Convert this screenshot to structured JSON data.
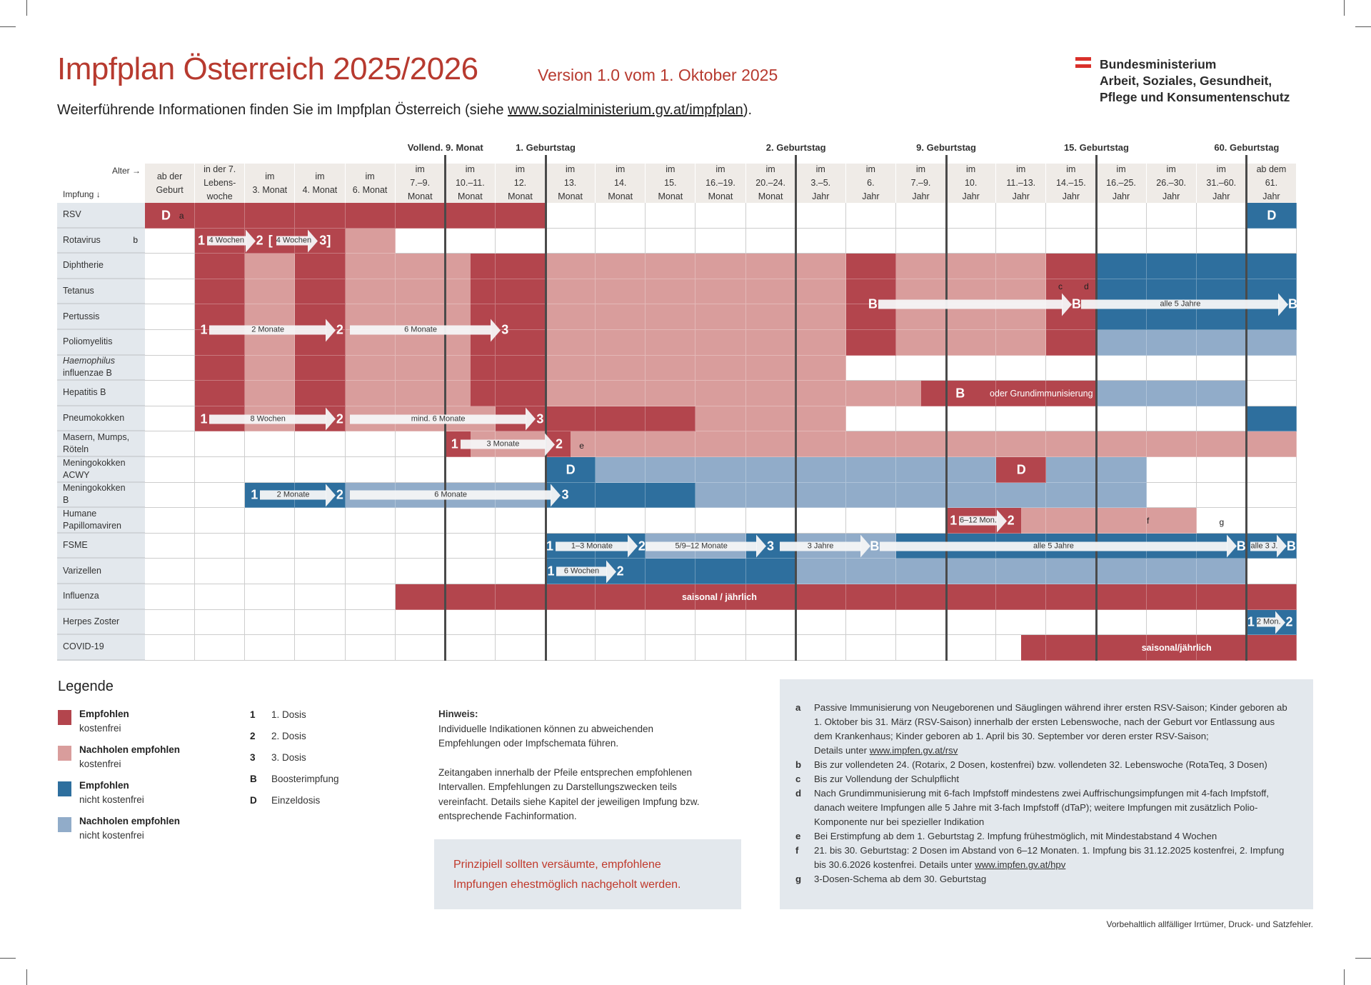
{
  "header": {
    "title": "Impfplan Österreich 2025/2026",
    "version": "Version 1.0 vom 1. Oktober 2025",
    "subtitle_prefix": "Weiterführende Informationen finden Sie im Impfplan Österreich (siehe ",
    "subtitle_link": "www.sozialministerium.gv.at/impfplan",
    "subtitle_suffix": ").",
    "ministry_lines": [
      "Bundesministerium",
      "Arbeit, Soziales, Gesundheit,",
      "Pflege und Konsumentenschutz"
    ],
    "brand_color": "#b73a2f"
  },
  "colors": {
    "R": "#b3454d",
    "r": "#d99d9c",
    "B": "#2e6f9e",
    "b": "#91acc9"
  },
  "table": {
    "age_label": "Alter →",
    "vaccine_label": "Impfung ↓",
    "milestones": [
      {
        "label": "Vollend. 9. Monat",
        "after_column": 5
      },
      {
        "label": "1. Geburtstag",
        "after_column": 7
      },
      {
        "label": "2. Geburtstag",
        "after_column": 12
      },
      {
        "label": "9. Geburtstag",
        "after_column": 15
      },
      {
        "label": "15. Geburtstag",
        "after_column": 18
      },
      {
        "label": "60. Geburtstag",
        "after_column": 21
      }
    ],
    "columns": [
      [
        "ab der",
        "Geburt"
      ],
      [
        "in der 7.",
        "Lebens-",
        "woche"
      ],
      [
        "im",
        "3. Monat"
      ],
      [
        "im",
        "4. Monat"
      ],
      [
        "im",
        "6. Monat"
      ],
      [
        "im",
        "7.–9.",
        "Monat"
      ],
      [
        "im",
        "10.–11.",
        "Monat"
      ],
      [
        "im",
        "12.",
        "Monat"
      ],
      [
        "im",
        "13.",
        "Monat"
      ],
      [
        "im",
        "14.",
        "Monat"
      ],
      [
        "im",
        "15.",
        "Monat"
      ],
      [
        "im",
        "16.–19.",
        "Monat"
      ],
      [
        "im",
        "20.–24.",
        "Monat"
      ],
      [
        "im",
        "3.–5.",
        "Jahr"
      ],
      [
        "im",
        "6.",
        "Jahr"
      ],
      [
        "im",
        "7.–9.",
        "Jahr"
      ],
      [
        "im",
        "10.",
        "Jahr"
      ],
      [
        "im",
        "11.–13.",
        "Jahr"
      ],
      [
        "im",
        "14.–15.",
        "Jahr"
      ],
      [
        "im",
        "16.–25.",
        "Jahr"
      ],
      [
        "im",
        "26.–30.",
        "Jahr"
      ],
      [
        "im",
        "31.–60.",
        "Jahr"
      ],
      [
        "ab dem",
        "61.",
        "Jahr"
      ]
    ],
    "rows": [
      {
        "name": "RSV",
        "note": "",
        "cells": [
          "R",
          "R",
          "R",
          "R",
          "R",
          "R",
          "R",
          "R",
          "",
          "",
          "",
          "",
          "",
          "",
          "",
          "",
          "",
          "",
          "",
          "",
          "",
          "",
          "B"
        ]
      },
      {
        "name": "Rotavirus",
        "note": "b",
        "cells": [
          "",
          "R",
          "R",
          "R",
          "r",
          "",
          "",
          "",
          "",
          "",
          "",
          "",
          "",
          "",
          "",
          "",
          "",
          "",
          "",
          "",
          "",
          "",
          ""
        ]
      },
      {
        "name": "Diphtherie",
        "note": "",
        "cells": [
          "",
          "R",
          "r",
          "R",
          "r",
          "r",
          "r|R",
          "R",
          "r",
          "r",
          "r",
          "r",
          "r",
          "r",
          "R",
          "r",
          "r",
          "r",
          "R",
          "B",
          "B",
          "B",
          "B"
        ]
      },
      {
        "name": "Tetanus",
        "note": "",
        "cells": [
          "",
          "R",
          "r",
          "R",
          "r",
          "r",
          "r|R",
          "R",
          "r",
          "r",
          "r",
          "r",
          "r",
          "r",
          "R",
          "r",
          "r",
          "r",
          "R",
          "B",
          "B",
          "B",
          "B"
        ]
      },
      {
        "name": "Pertussis",
        "note": "",
        "cells": [
          "",
          "R",
          "r",
          "R",
          "r",
          "r",
          "r|R",
          "R",
          "r",
          "r",
          "r",
          "r",
          "r",
          "r",
          "R",
          "r",
          "r",
          "r",
          "R",
          "B",
          "B",
          "B",
          "B"
        ]
      },
      {
        "name": "Poliomyelitis",
        "note": "",
        "cells": [
          "",
          "R",
          "r",
          "R",
          "r",
          "r",
          "r|R",
          "R",
          "r",
          "r",
          "r",
          "r",
          "r",
          "r",
          "R",
          "r",
          "r",
          "r",
          "R",
          "b",
          "b",
          "b",
          "b"
        ]
      },
      {
        "name": "Haemophilus influenzae B",
        "italic_part": "Haemophilus",
        "rest_part": "influenzae B",
        "note": "",
        "cells": [
          "",
          "R",
          "r",
          "R",
          "r",
          "r",
          "r|R",
          "R",
          "r",
          "r",
          "r",
          "r",
          "r",
          "r",
          "",
          "",
          "",
          "",
          "",
          "",
          "",
          "",
          ""
        ]
      },
      {
        "name": "Hepatitis B",
        "note": "",
        "cells": [
          "",
          "R",
          "r",
          "R",
          "r",
          "r",
          "r|R",
          "R",
          "r",
          "r",
          "r",
          "r",
          "r",
          "r",
          "r",
          "r|R",
          "R",
          "R",
          "R",
          "b",
          "b",
          "b",
          ""
        ]
      },
      {
        "name": "Pneumokokken",
        "note": "",
        "cells": [
          "",
          "R",
          "r",
          "R",
          "r",
          "r",
          "r",
          "R",
          "R",
          "R",
          "R",
          "r",
          "r",
          "r",
          "",
          "",
          "",
          "",
          "",
          "",
          "",
          "",
          "B"
        ]
      },
      {
        "name": "Masern, Mumps, Röteln",
        "note": "",
        "cells": [
          "",
          "",
          "",
          "",
          "",
          "",
          "R|r",
          "r",
          "R|r",
          "r",
          "r",
          "r",
          "r",
          "r",
          "r",
          "r",
          "r",
          "r",
          "r",
          "r",
          "r",
          "r",
          "r"
        ]
      },
      {
        "name": "Meningokokken ACWY",
        "note": "",
        "cells": [
          "",
          "",
          "",
          "",
          "",
          "",
          "",
          "",
          "B",
          "b",
          "b",
          "b",
          "b",
          "b",
          "b",
          "b",
          "b",
          "R",
          "b",
          "b",
          "",
          "",
          ""
        ]
      },
      {
        "name": "Meningokokken B",
        "note": "",
        "cells": [
          "",
          "",
          "B",
          "B",
          "b",
          "b",
          "b",
          "b",
          "B",
          "B",
          "B",
          "b",
          "b",
          "b",
          "b",
          "b",
          "b",
          "b",
          "b",
          "b",
          "",
          "",
          ""
        ]
      },
      {
        "name": "Humane Papillomaviren",
        "note": "",
        "cells": [
          "",
          "",
          "",
          "",
          "",
          "",
          "",
          "",
          "",
          "",
          "",
          "",
          "",
          "",
          "",
          "",
          "R",
          "R|r",
          "r",
          "r",
          "r",
          "",
          ""
        ]
      },
      {
        "name": "FSME",
        "note": "",
        "cells": [
          "",
          "",
          "",
          "",
          "",
          "",
          "",
          "",
          "B",
          "B",
          "b",
          "b",
          "B",
          "b",
          "b",
          "B",
          "B",
          "B",
          "B",
          "B",
          "B",
          "B",
          "B"
        ]
      },
      {
        "name": "Varizellen",
        "note": "",
        "cells": [
          "",
          "",
          "",
          "",
          "",
          "",
          "",
          "",
          "B",
          "B",
          "B",
          "B",
          "B",
          "b",
          "b",
          "b",
          "b",
          "b",
          "b",
          "b",
          "b",
          "b",
          ""
        ]
      },
      {
        "name": "Influenza",
        "note": "",
        "cells": [
          "",
          "",
          "",
          "",
          "",
          "R",
          "R",
          "R",
          "R",
          "R",
          "R",
          "R",
          "R",
          "R",
          "R",
          "R",
          "R",
          "R",
          "R",
          "R",
          "R",
          "R",
          "R"
        ]
      },
      {
        "name": "Herpes Zoster",
        "note": "",
        "cells": [
          "",
          "",
          "",
          "",
          "",
          "",
          "",
          "",
          "",
          "",
          "",
          "",
          "",
          "",
          "",
          "",
          "",
          "",
          "",
          "",
          "",
          "",
          "B"
        ]
      },
      {
        "name": "COVID-19",
        "note": "",
        "cells": [
          "",
          "",
          "",
          "",
          "",
          "",
          "",
          "",
          "",
          "",
          "",
          "",
          "",
          "",
          "",
          "",
          "",
          "|R",
          "R",
          "R",
          "R",
          "R",
          "R"
        ]
      }
    ],
    "cell_marks": [
      {
        "id": "rsv_d1",
        "text": "D"
      },
      {
        "id": "rsv_a",
        "text": "a"
      },
      {
        "id": "rsv_d2",
        "text": "D"
      },
      {
        "id": "acwy_d1",
        "text": "D"
      },
      {
        "id": "acwy_d2",
        "text": "D"
      },
      {
        "id": "dtp_c",
        "text": "c"
      },
      {
        "id": "dtp_d",
        "text": "d"
      },
      {
        "id": "mmr_e",
        "text": "e"
      },
      {
        "id": "hpv_f",
        "text": "f"
      },
      {
        "id": "hpv_g",
        "text": "g"
      },
      {
        "id": "hepb_b",
        "text": "B"
      },
      {
        "id": "hepb_text",
        "text": "oder Grundimmunisierung"
      },
      {
        "id": "flu_text",
        "text": "saisonal / jährlich"
      },
      {
        "id": "covid_text",
        "text": "saisonal/jährlich"
      }
    ],
    "arrows": [
      {
        "id": "rota1",
        "start": "1",
        "label": "4 Wochen",
        "end": "2"
      },
      {
        "id": "rota2",
        "start": "[",
        "label": "4 Wochen",
        "end": "3]"
      },
      {
        "id": "six1",
        "start": "1",
        "label": "2 Monate",
        "end": "2"
      },
      {
        "id": "six2",
        "start": "",
        "label": "6 Monate",
        "end": "3"
      },
      {
        "id": "dtp1",
        "start": "B",
        "label": "",
        "end": "B"
      },
      {
        "id": "dtp2",
        "start": "",
        "label": "alle 5 Jahre",
        "end": "B"
      },
      {
        "id": "pn1",
        "start": "1",
        "label": "8 Wochen",
        "end": "2"
      },
      {
        "id": "pn2",
        "start": "",
        "label": "mind. 6 Monate",
        "end": "3"
      },
      {
        "id": "mmr1",
        "start": "1",
        "label": "3 Monate",
        "end": "2"
      },
      {
        "id": "menb1",
        "start": "1",
        "label": "2 Monate",
        "end": "2"
      },
      {
        "id": "menb2",
        "start": "",
        "label": "6 Monate",
        "end": "3"
      },
      {
        "id": "hpv1",
        "start": "1",
        "label": "6–12 Mon.",
        "end": "2"
      },
      {
        "id": "fsme1",
        "start": "1",
        "label": "1–3 Monate",
        "end": "2"
      },
      {
        "id": "fsme2",
        "start": "",
        "label": "5/9–12 Monate",
        "end": "3"
      },
      {
        "id": "fsme3",
        "start": "",
        "label": "3 Jahre",
        "end": "B"
      },
      {
        "id": "fsme4",
        "start": "",
        "label": "alle 5 Jahre",
        "end": "B"
      },
      {
        "id": "fsme5",
        "start": "",
        "label": "alle 3 J.",
        "end": "B"
      },
      {
        "id": "var1",
        "start": "1",
        "label": "6 Wochen",
        "end": "2"
      },
      {
        "id": "hz1",
        "start": "1",
        "label": "2 Mon.",
        "end": "2"
      }
    ]
  },
  "legend": {
    "title": "Legende",
    "colors": [
      {
        "code": "R",
        "title": "Empfohlen",
        "sub": "kostenfrei"
      },
      {
        "code": "r",
        "title": "Nachholen empfohlen",
        "sub": "kostenfrei"
      },
      {
        "code": "B",
        "title": "Empfohlen",
        "sub": "nicht kostenfrei"
      },
      {
        "code": "b",
        "title": "Nachholen empfohlen",
        "sub": "nicht kostenfrei"
      }
    ],
    "keys": [
      {
        "key": "1",
        "text": "1. Dosis"
      },
      {
        "key": "2",
        "text": "2. Dosis"
      },
      {
        "key": "3",
        "text": "3. Dosis"
      },
      {
        "key": "B",
        "text": "Boosterimpfung"
      },
      {
        "key": "D",
        "text": "Einzeldosis"
      }
    ]
  },
  "hinweis": {
    "title": "Hinweis:",
    "p1": "Individuelle Indikationen können zu abweichenden Empfehlungen oder Impfschemata führen.",
    "p2": "Zeitangaben innerhalb der Pfeile entsprechen empfohlenen Intervallen. Empfehlungen zu Darstellungszwecken teils vereinfacht. Details siehe Kapitel der jeweiligen Impfung bzw. entsprechende Fachinformation."
  },
  "callout": "Prinzipiell sollten versäumte, empfohlene Impfungen ehestmöglich nachgeholt werden.",
  "footnotes": [
    {
      "key": "a",
      "text": "Passive Immunisierung von Neugeborenen und Säuglingen während ihrer ersten RSV-Saison; Kinder geboren ab 1. Oktober bis 31. März (RSV-Saison) innerhalb der ersten Lebenswoche, nach der Geburt vor Entlassung aus dem Krankenhaus; Kinder geboren ab 1. April bis 30. September vor deren erster RSV-Saison;",
      "text2": "Details unter ",
      "link": "www.impfen.gv.at/rsv"
    },
    {
      "key": "b",
      "text": "Bis zur vollendeten 24. (Rotarix, 2 Dosen, kostenfrei) bzw. vollendeten 32. Lebenswoche (RotaTeq, 3 Dosen)"
    },
    {
      "key": "c",
      "text": "Bis zur Vollendung der Schulpflicht"
    },
    {
      "key": "d",
      "text": "Nach Grundimmunisierung mit 6-fach Impfstoff mindestens zwei Auffrischungsimpfungen mit 4-fach Impfstoff, danach weitere Impfungen alle 5 Jahre mit 3-fach Impfstoff (dTaP); weitere Impfungen mit zusätzlich Polio-Komponente nur bei spezieller Indikation"
    },
    {
      "key": "e",
      "text": "Bei Erstimpfung ab dem 1. Geburtstag 2. Impfung frühestmöglich, mit Mindestabstand 4 Wochen"
    },
    {
      "key": "f",
      "text": "21. bis 30. Geburtstag: 2 Dosen im Abstand von 6–12 Monaten. 1. Impfung bis 31.12.2025 kostenfrei, 2. Impfung bis 30.6.2026 kostenfrei. Details unter ",
      "link": "www.impfen.gv.at/hpv"
    },
    {
      "key": "g",
      "text": "3-Dosen-Schema ab dem 30. Geburtstag"
    }
  ],
  "disclaimer": "Vorbehaltlich allfälliger Irrtümer, Druck- und Satzfehler."
}
